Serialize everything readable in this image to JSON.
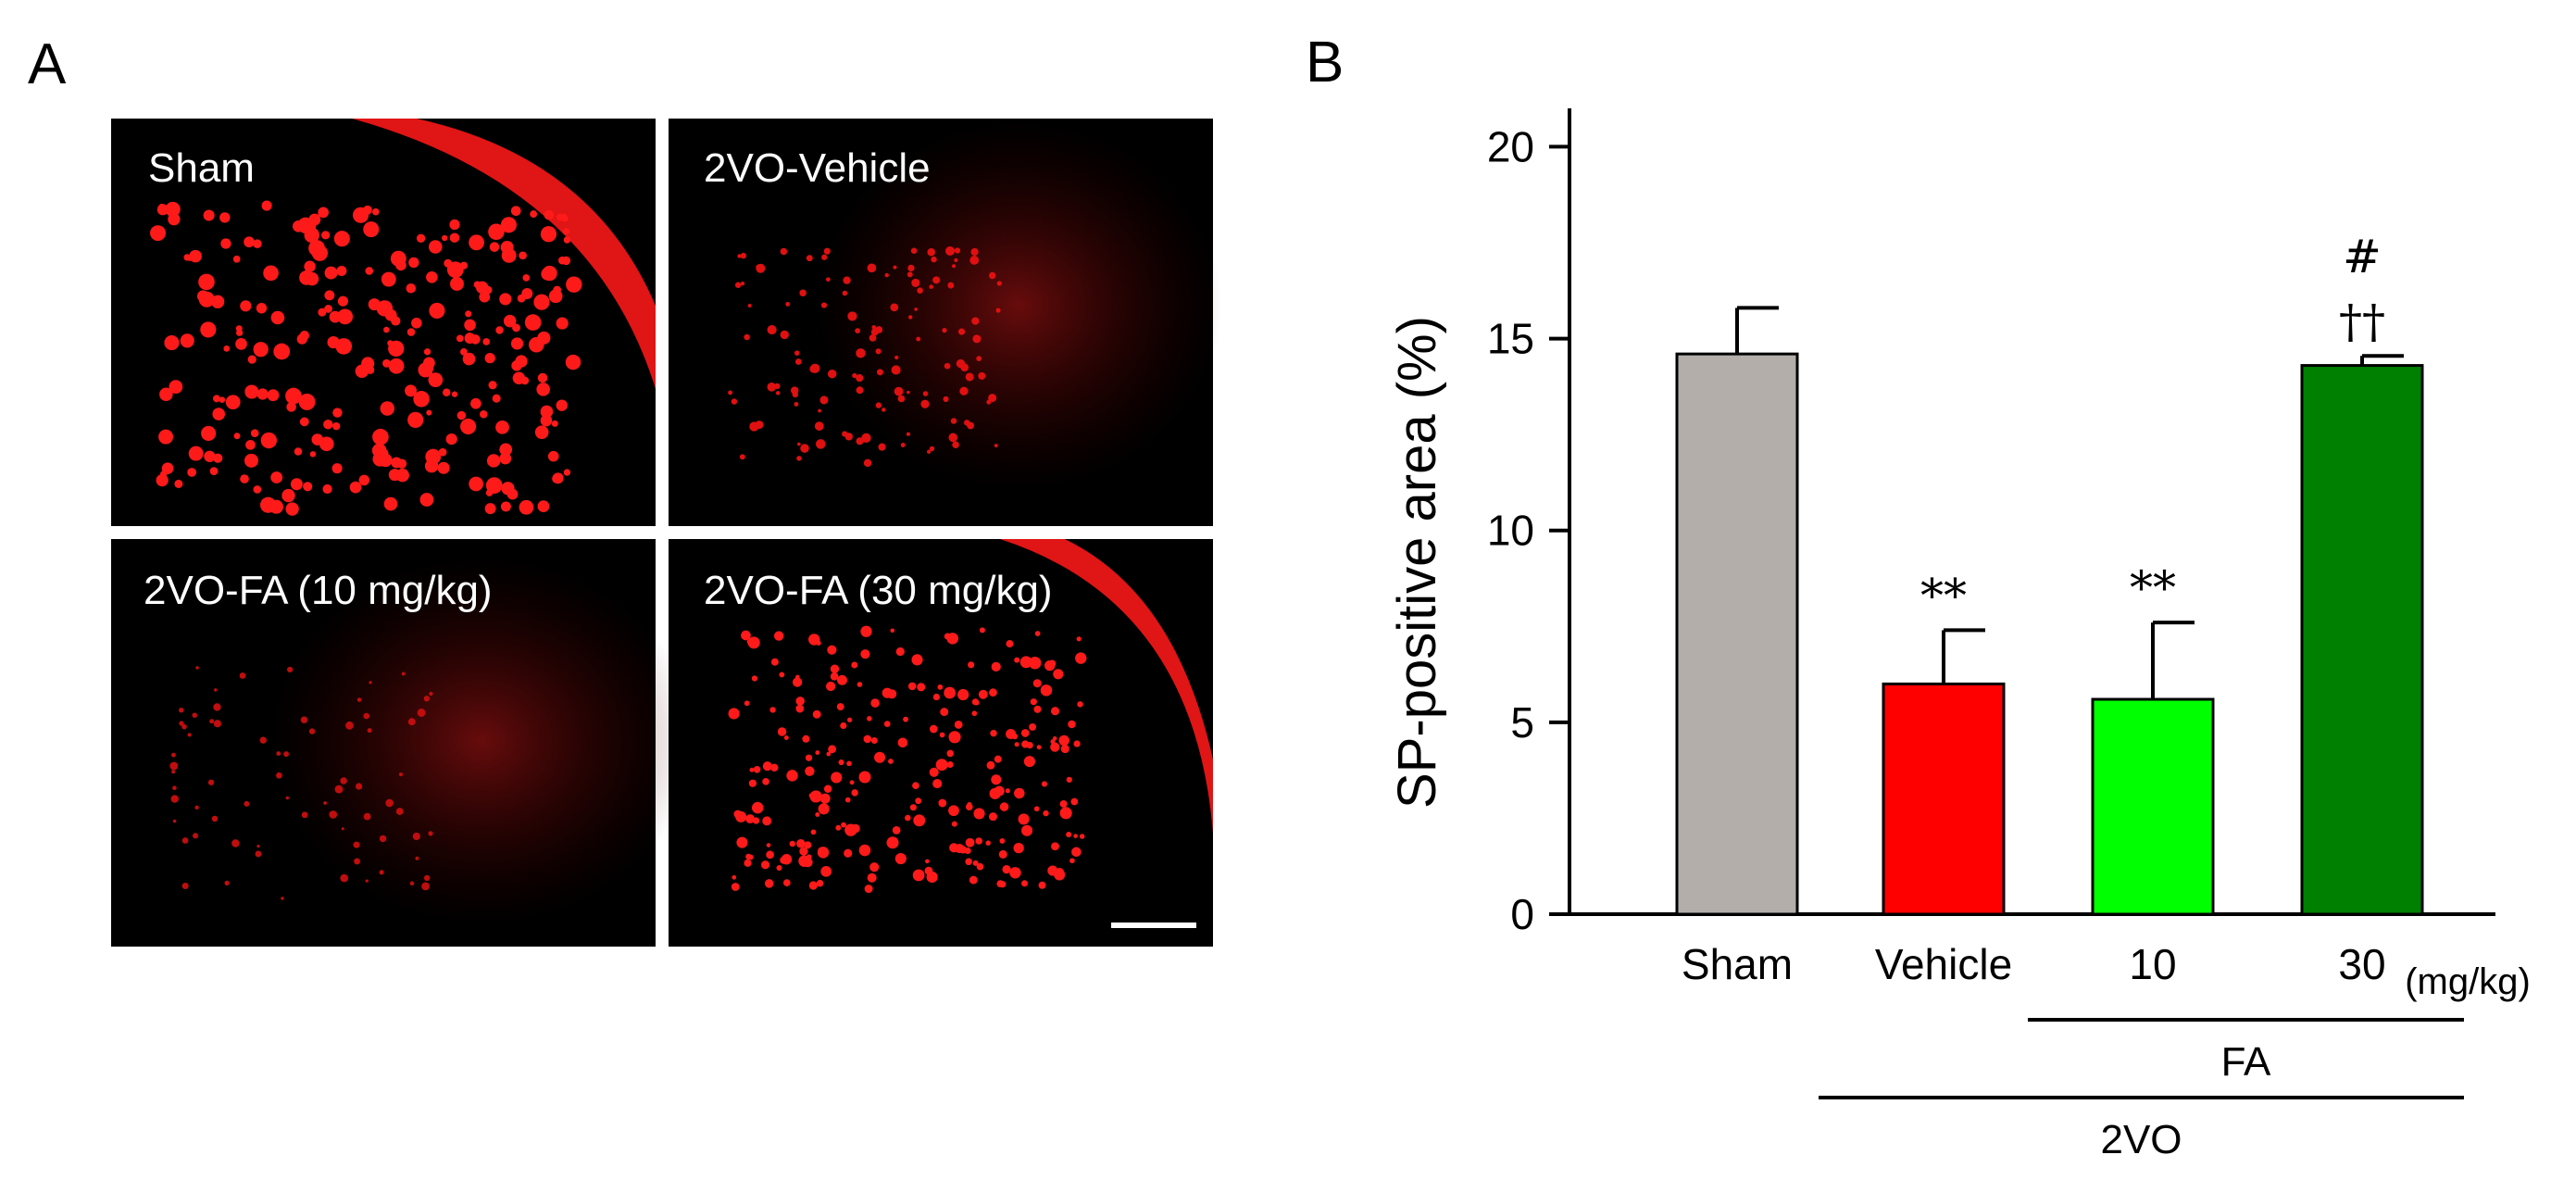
{
  "panel_a": {
    "letter": "A",
    "panels": [
      {
        "label": "Sham"
      },
      {
        "label": "2VO-Vehicle"
      },
      {
        "label": "2VO-FA (10 mg/kg)"
      },
      {
        "label": "2VO-FA (30 mg/kg)"
      }
    ]
  },
  "panel_b": {
    "letter": "B"
  },
  "chart_data": {
    "type": "bar",
    "categories": [
      "Sham",
      "Vehicle",
      "10",
      "30"
    ],
    "values": [
      14.6,
      6.0,
      5.6,
      14.3
    ],
    "errors": [
      1.2,
      1.4,
      2.0,
      0.25
    ],
    "colors": [
      "#b3aeaa",
      "#fe0000",
      "#00ff00",
      "#008000"
    ],
    "significance": [
      "",
      "**",
      "**",
      "††"
    ],
    "significance_top": [
      "",
      "",
      "",
      "#"
    ],
    "ylabel": "SP-positive area (%)",
    "ylim": [
      0,
      21
    ],
    "yticks": [
      0,
      5,
      10,
      15,
      20
    ],
    "unit_note": "(mg/kg)",
    "groups": [
      {
        "label": "FA",
        "from": 2,
        "to": 3
      },
      {
        "label": "2VO",
        "from": 1,
        "to": 3
      }
    ]
  }
}
